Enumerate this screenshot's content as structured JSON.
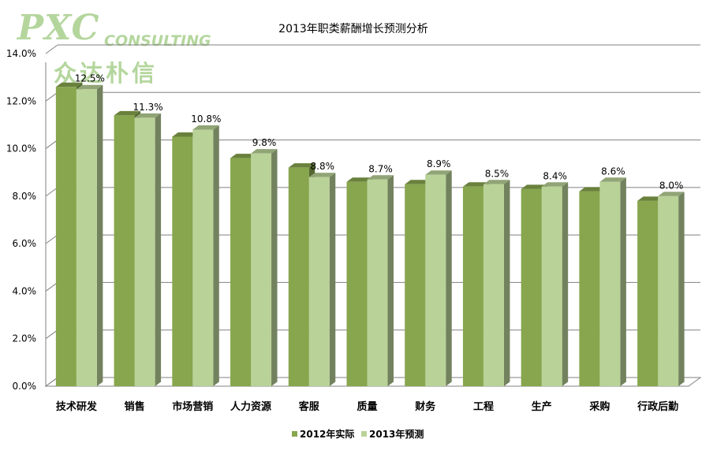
{
  "logo": {
    "latin": "PXC",
    "sub": "CONSULTING",
    "chinese": "众达朴信"
  },
  "colors": {
    "actual": "#87a64d",
    "forecast": "#b9d297",
    "grid": "#808080"
  },
  "chart_data": {
    "type": "bar",
    "title": "2013年职类薪酬增长预测分析",
    "xlabel": "",
    "ylabel": "",
    "ylim": [
      0,
      14
    ],
    "y_ticks": [
      "0.0%",
      "2.0%",
      "4.0%",
      "6.0%",
      "8.0%",
      "10.0%",
      "12.0%",
      "14.0%"
    ],
    "grid": true,
    "legend_position": "bottom",
    "categories": [
      "技术研发",
      "销售",
      "市场营销",
      "人力资源",
      "客服",
      "质量",
      "财务",
      "工程",
      "生产",
      "采购",
      "行政后勤"
    ],
    "series": [
      {
        "name": "2012年实际",
        "values": [
          12.6,
          11.4,
          10.5,
          9.6,
          9.2,
          8.6,
          8.5,
          8.4,
          8.3,
          8.2,
          7.8
        ]
      },
      {
        "name": "2013年预测",
        "values": [
          12.5,
          11.3,
          10.8,
          9.8,
          8.8,
          8.7,
          8.9,
          8.5,
          8.4,
          8.6,
          8.0
        ],
        "data_labels": [
          "12.5%",
          "11.3%",
          "10.8%",
          "9.8%",
          "8.8%",
          "8.7%",
          "8.9%",
          "8.5%",
          "8.4%",
          "8.6%",
          "8.0%"
        ]
      }
    ]
  }
}
